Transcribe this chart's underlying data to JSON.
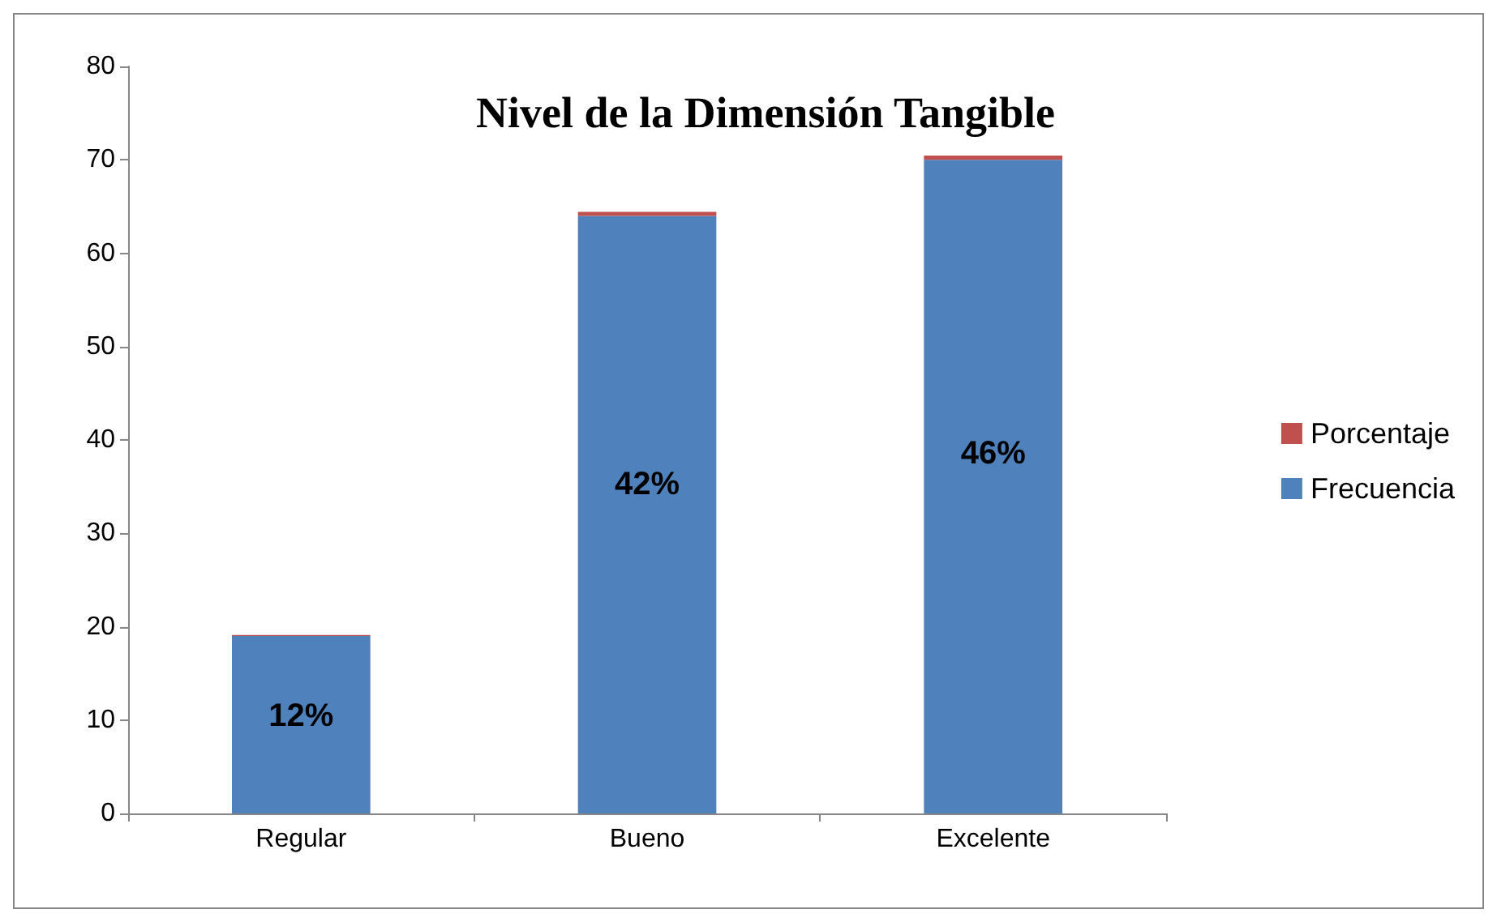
{
  "chart_data": {
    "type": "bar",
    "title": "Nivel de la Dimensión Tangible",
    "categories": [
      "Regular",
      "Bueno",
      "Excelente"
    ],
    "stacked": true,
    "series": [
      {
        "name": "Frecuencia",
        "color": "#4f81bd",
        "values": [
          19,
          64,
          70
        ]
      },
      {
        "name": "Porcentaje",
        "color": "#c0504d",
        "values": [
          0.12,
          0.42,
          0.46
        ]
      }
    ],
    "ylim": [
      0,
      80
    ],
    "yticks": [
      0,
      10,
      20,
      30,
      40,
      50,
      60,
      70,
      80
    ],
    "grid": false,
    "legend": "right",
    "annotations": [
      "12%",
      "42%",
      "46%"
    ]
  }
}
